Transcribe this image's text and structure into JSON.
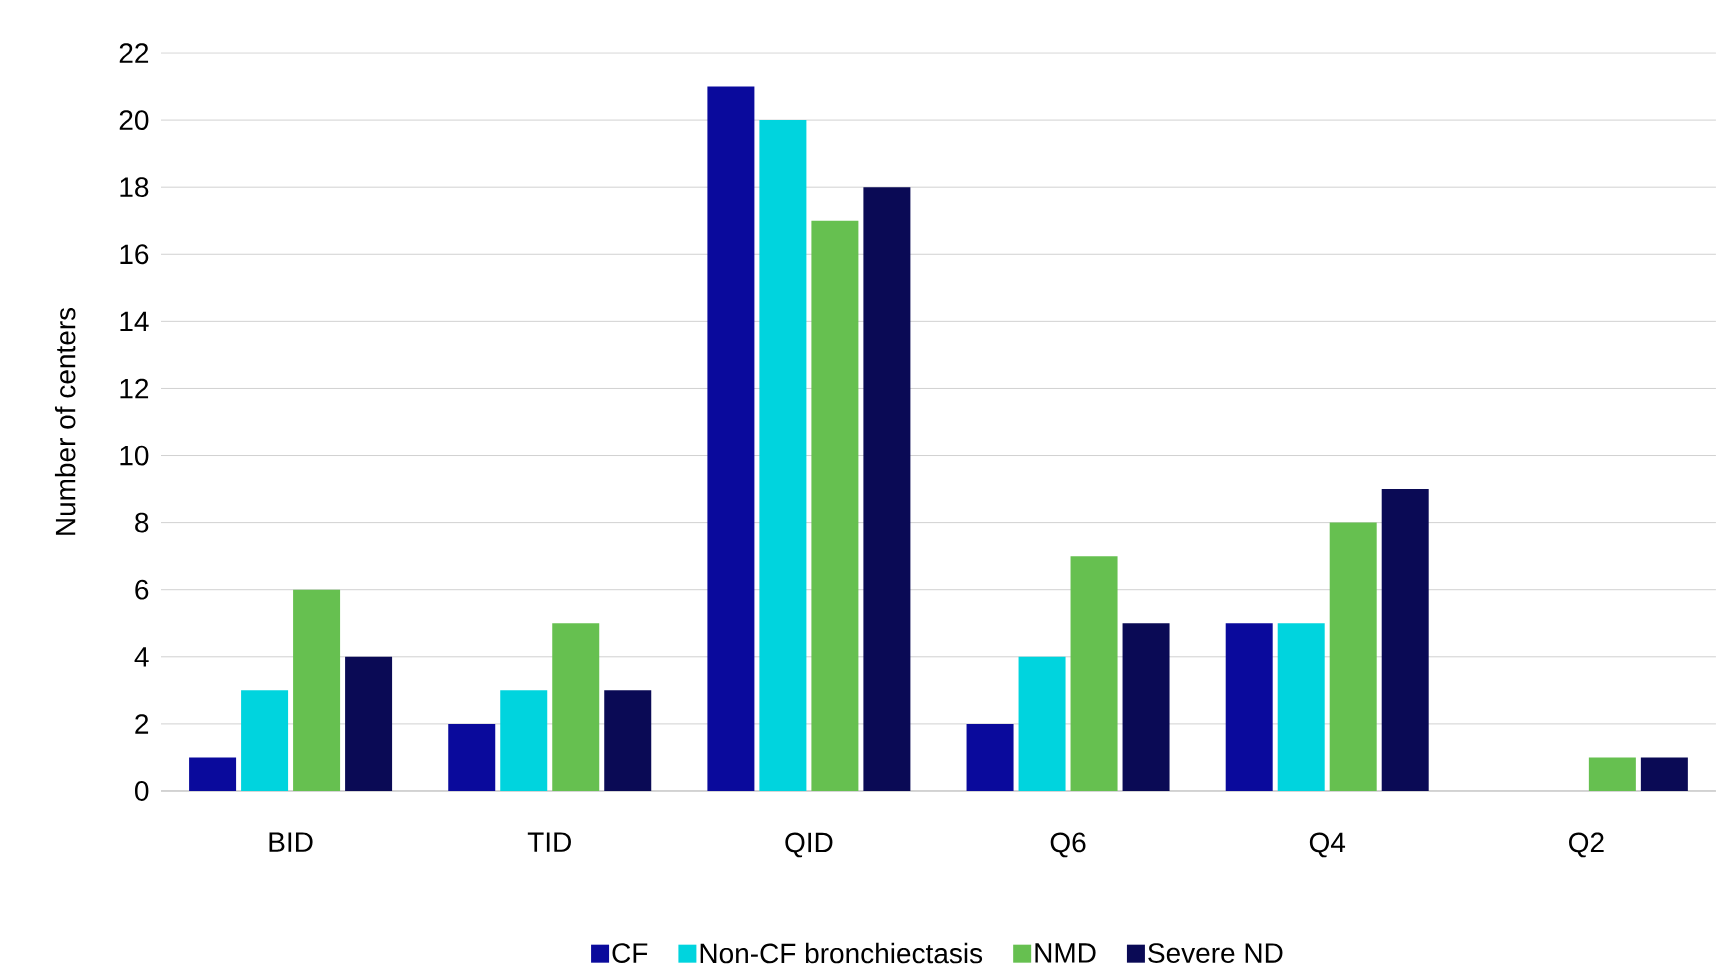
{
  "chart_data": {
    "type": "bar",
    "ylabel": "Number of centers",
    "categories": [
      "BID",
      "TID",
      "QID",
      "Q6",
      "Q4",
      "Q2"
    ],
    "series": [
      {
        "name": "CF",
        "color": "#0a0a9c",
        "values": [
          1,
          2,
          21,
          2,
          5,
          0
        ]
      },
      {
        "name": "Non-CF bronchiectasis",
        "color": "#00d4de",
        "values": [
          3,
          3,
          20,
          4,
          5,
          0
        ]
      },
      {
        "name": "NMD",
        "color": "#66c050",
        "values": [
          6,
          5,
          17,
          7,
          8,
          1
        ]
      },
      {
        "name": "Severe ND",
        "color": "#0a0a55",
        "values": [
          4,
          3,
          18,
          5,
          9,
          1
        ]
      }
    ],
    "ylim": [
      0,
      22
    ],
    "yticks": [
      0,
      2,
      4,
      6,
      8,
      10,
      12,
      14,
      16,
      18,
      20,
      22
    ],
    "grid": "y",
    "legend": "bottom"
  }
}
